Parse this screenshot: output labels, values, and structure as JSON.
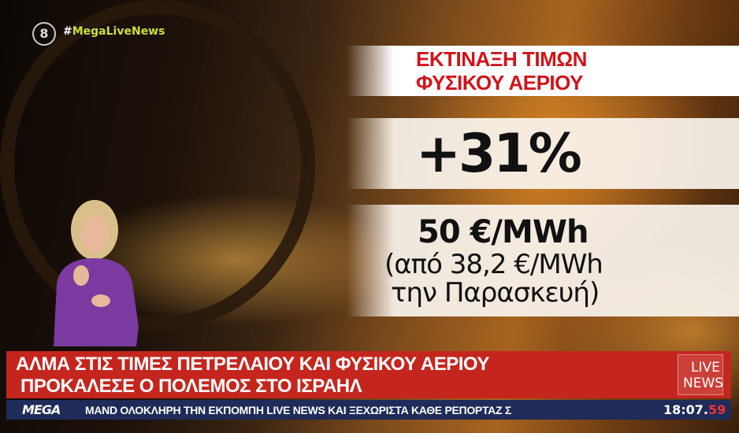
{
  "channel": {
    "logo_number": "8",
    "hashtag_symbol": "#",
    "hashtag": "MegaLiveNews"
  },
  "infographic": {
    "title_line1": "ΕΚΤΙΝΑΞΗ ΤΙΜΩΝ",
    "title_line2": "ΦΥΣΙΚΟΥ ΑΕΡΙΟΥ",
    "change": "+31%",
    "price": "50 €/MWh",
    "previous_line1": "(από 38,2 €/MWh",
    "previous_line2": "την Παρασκευή)",
    "title_color": "#d0141a"
  },
  "headline": {
    "line1": "ΑΛΜΑ ΣΤΙΣ ΤΙΜΕΣ ΠΕΤΡΕΛΑΙΟΥ ΚΑΙ ΦΥΣΙΚΟΥ ΑΕΡΙΟΥ",
    "line2": "ΠΡΟΚΑΛΕΣΕ Ο ΠΟΛΕΜΟΣ ΣΤΟ ΙΣΡΑΗΛ",
    "badge_line1": "LIVE",
    "badge_line2": "NEWS",
    "color": "#c4261e"
  },
  "ticker": {
    "brand": "MEGA",
    "text": "ΜAND ΟΛΟΚΛΗΡΗ ΤΗΝ ΕΚΠΟΜΠΗ LIVE NEWS ΚΑΙ ΞΕΧΩΡΙΣΤΑ ΚΑΘΕ ΡΕΠΟΡΤΑΖ Σ",
    "time_hm": "18:07.",
    "time_s": "59",
    "color": "#1f2b58"
  }
}
